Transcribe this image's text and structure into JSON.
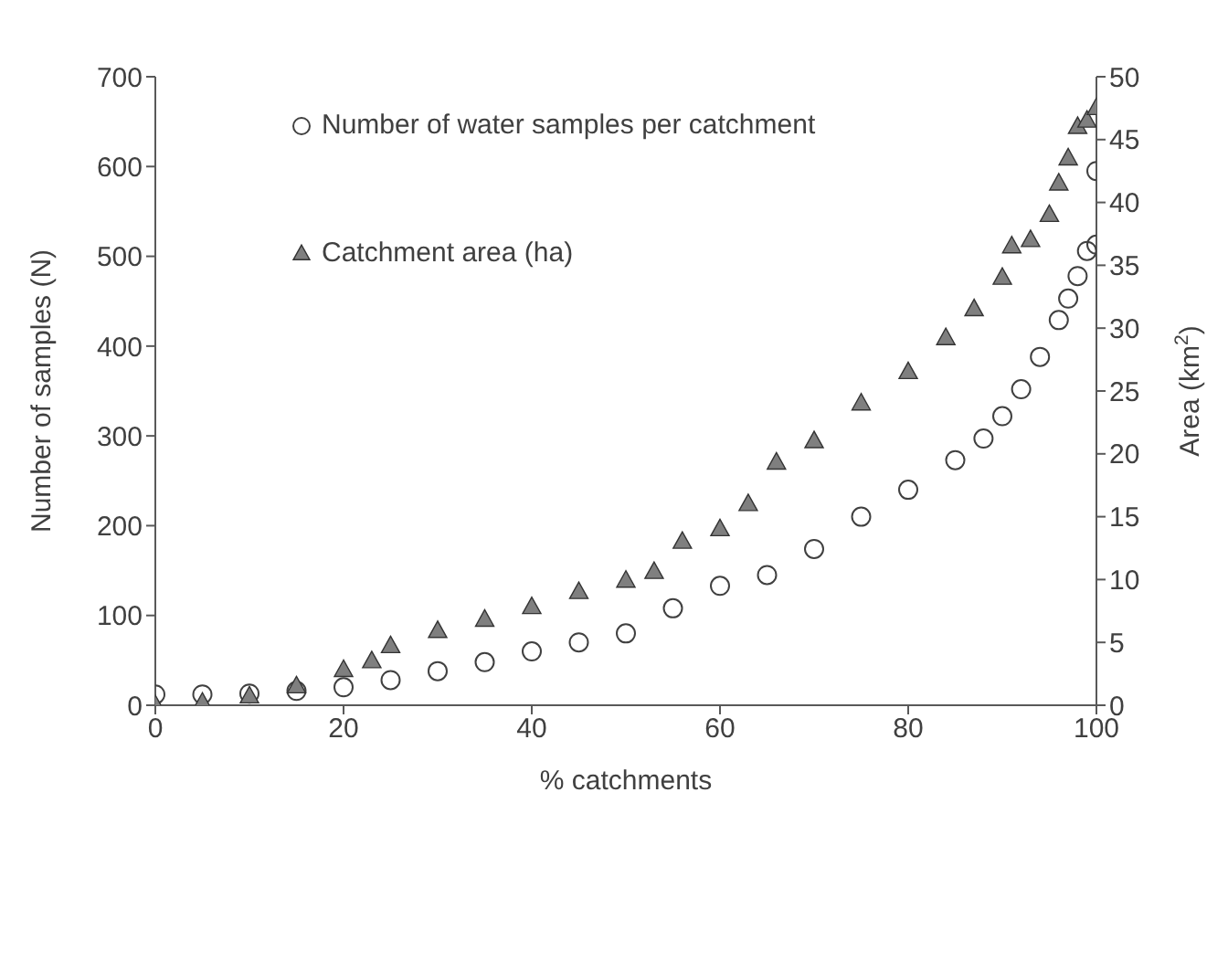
{
  "chart_data": {
    "type": "scatter",
    "xlabel": "% catchments",
    "ylabel": "Number of samples (N)",
    "y2label": "Area (km$^{2}$)",
    "xlim": [
      0,
      100
    ],
    "xticks": [
      0,
      20,
      40,
      60,
      80,
      100
    ],
    "ylim": [
      0,
      700
    ],
    "yticks": [
      0,
      100,
      200,
      300,
      400,
      500,
      600,
      700
    ],
    "y2lim": [
      0,
      50
    ],
    "y2ticks": [
      0,
      5,
      10,
      15,
      20,
      25,
      30,
      35,
      40,
      45,
      50
    ],
    "grid": false,
    "legend": "top left",
    "series": [
      {
        "name": "Number of water samples per catchment",
        "color": "#404040",
        "marker": "circle",
        "x": [
          0,
          5,
          10,
          15,
          20,
          25,
          30,
          35,
          40,
          45,
          50,
          55,
          60,
          65,
          70,
          75,
          80,
          85,
          88,
          90,
          92,
          94,
          96,
          97,
          98,
          99,
          100,
          100
        ],
        "values": [
          12,
          12,
          13,
          16,
          20,
          28,
          38,
          48,
          60,
          70,
          80,
          108,
          133,
          145,
          174,
          210,
          240,
          273,
          297,
          322,
          352,
          388,
          429,
          453,
          478,
          506,
          513,
          595
        ]
      },
      {
        "name": "Catchment area (ha)",
        "color": "#7f7f7f",
        "marker": "triangle",
        "axis": "y2",
        "x": [
          0,
          5,
          10,
          15,
          20,
          23,
          25,
          30,
          35,
          40,
          45,
          50,
          53,
          56,
          60,
          63,
          66,
          70,
          75,
          80,
          84,
          87,
          90,
          91,
          93,
          95,
          96,
          97,
          98,
          99,
          100
        ],
        "values": [
          0,
          0.2,
          0.7,
          1.5,
          2.8,
          3.5,
          4.7,
          5.9,
          6.8,
          7.8,
          9,
          9.9,
          10.6,
          13,
          14,
          16,
          19.3,
          21,
          24,
          26.5,
          29.2,
          31.5,
          34,
          36.5,
          37,
          39,
          41.5,
          43.5,
          46,
          46.5,
          47.5
        ]
      }
    ]
  }
}
